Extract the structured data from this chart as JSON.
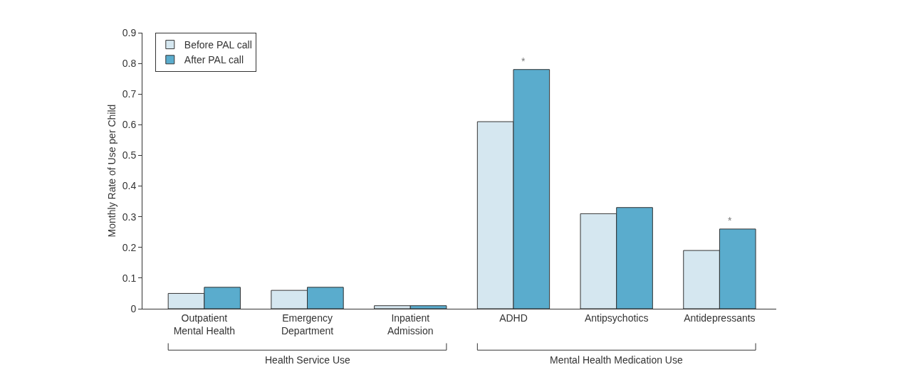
{
  "chart_data": {
    "type": "bar",
    "ylabel": "Monthly Rate of Use per Child",
    "categories": [
      "Outpatient\nMental Health",
      "Emergency\nDepartment",
      "Inpatient\nAdmission",
      "ADHD",
      "Antipsychotics",
      "Antidepressants"
    ],
    "series": [
      {
        "name": "Before PAL call",
        "color": "#d5e7f0",
        "values": [
          0.05,
          0.06,
          0.01,
          0.61,
          0.31,
          0.19
        ]
      },
      {
        "name": "After PAL call",
        "color": "#5aaccd",
        "values": [
          0.07,
          0.07,
          0.01,
          0.78,
          0.33,
          0.26
        ]
      }
    ],
    "ylim": [
      0,
      0.9
    ],
    "yticks": [
      0,
      0.1,
      0.2,
      0.3,
      0.4,
      0.5,
      0.6,
      0.7,
      0.8,
      0.9
    ],
    "grid": false,
    "legend": "top left",
    "annotations": [
      {
        "text": "*",
        "x": "ADHD",
        "y": 0.78
      },
      {
        "text": "*",
        "x": "Antidepressants",
        "y": 0.26
      },
      "Health Service Use",
      "Mental Health Medication Use"
    ]
  }
}
